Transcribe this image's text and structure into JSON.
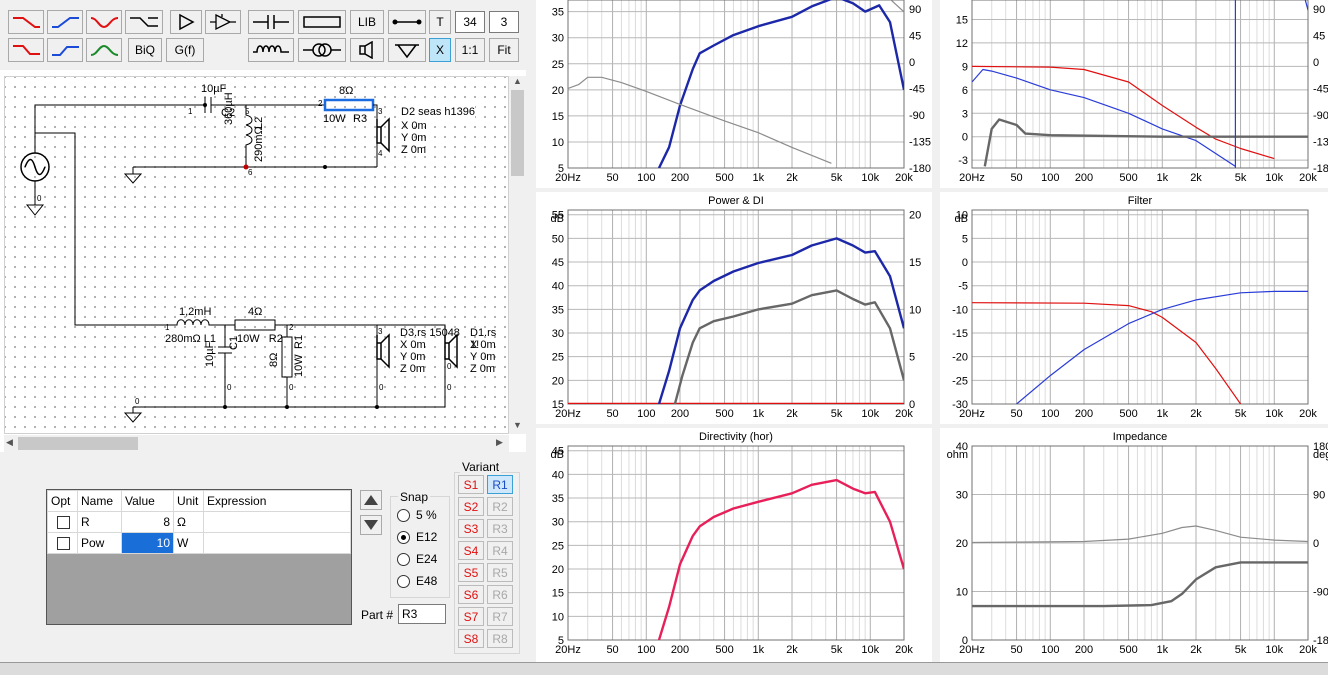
{
  "toolbar": {
    "lib_label": "LIB",
    "t_label": "T",
    "num1": "34",
    "num2": "3",
    "biq_label": "BiQ",
    "gf_label": "G(f)",
    "x_label": "X",
    "ratio_label": "1:1",
    "fit_label": "Fit"
  },
  "schematic": {
    "c2_value": "10µF",
    "c2_name": "C2",
    "l2_value": "360µH",
    "l2_name": "L2",
    "l2_res": "290mΩ",
    "r3_value": "8Ω",
    "r3_pow": "10W",
    "r3_name": "R3",
    "d2_name": "D2 seas h1396",
    "d2_x": "X 0m",
    "d2_y": "Y 0m",
    "d2_z": "Z 0m",
    "l1_value": "1,2mH",
    "l1_label": "280mΩ L1",
    "r2_value": "4Ω",
    "r2_label": "10W   R2",
    "c1_value": "10µF",
    "c1_name": "C1",
    "r1_value": "8Ω",
    "r1_pow": "10W",
    "r1_name": "R1",
    "d3_name": "D3.rs 15048",
    "d3_x": "X 0m",
    "d3_y": "Y 0m",
    "d3_z": "Z 0m",
    "d1_name": "D1.rs 1!",
    "d1_x": "X 0m",
    "d1_y": "Y 0m",
    "d1_z": "Z 0m",
    "node_labels": [
      "1",
      "5",
      "3",
      "2",
      "4",
      "6",
      "0",
      "1",
      "2",
      "3",
      "0",
      "0",
      "0",
      "0",
      "0",
      "0"
    ]
  },
  "properties": {
    "headers": [
      "Opt",
      "Name",
      "Value",
      "Unit",
      "Expression"
    ],
    "rows": [
      {
        "name": "R",
        "value": "8",
        "unit": "Ω",
        "expr": ""
      },
      {
        "name": "Pow",
        "value": "10",
        "unit": "W",
        "expr": ""
      }
    ]
  },
  "snap": {
    "title": "Snap",
    "options": [
      "5 %",
      "E12",
      "E24",
      "E48"
    ],
    "selected": "E12"
  },
  "part": {
    "label": "Part #",
    "value": "R3"
  },
  "variant": {
    "title": "Variant",
    "s_items": [
      "S1",
      "S2",
      "S3",
      "S4",
      "S5",
      "S6",
      "S7",
      "S8"
    ],
    "r_items": [
      "R1",
      "R2",
      "R3",
      "R4",
      "R5",
      "R6",
      "R7",
      "R8"
    ],
    "selected_r": "R1"
  },
  "colors": {
    "blue": "#1c28a8",
    "gray": "#676767",
    "red": "#e01010",
    "pink": "#e8205a",
    "lightgray": "#8c8c8c",
    "thinblue": "#2a3cd8"
  },
  "chart_data": [
    {
      "type": "line",
      "title": "",
      "x_ticks": [
        "20Hz",
        "50",
        "100",
        "200",
        "500",
        "1k",
        "2k",
        "5k",
        "10k",
        "20k"
      ],
      "y_ticks": [
        "5",
        "10",
        "15",
        "20",
        "25",
        "30",
        "35"
      ],
      "y2_ticks": [
        "-180",
        "-135",
        "-90",
        "-45",
        "0",
        "45",
        "90"
      ],
      "ylim": [
        5,
        38
      ],
      "y2lim": [
        -180,
        112
      ],
      "series": [
        {
          "color": "#1c28a8",
          "axis": "left",
          "points": [
            [
              130,
              5
            ],
            [
              160,
              9
            ],
            [
              200,
              17
            ],
            [
              260,
              24
            ],
            [
              300,
              27
            ],
            [
              400,
              28.5
            ],
            [
              600,
              30.5
            ],
            [
              1000,
              32.2
            ],
            [
              2000,
              34
            ],
            [
              3000,
              36
            ],
            [
              5000,
              37.8
            ],
            [
              7000,
              36.6
            ],
            [
              9000,
              35
            ],
            [
              12000,
              36.2
            ],
            [
              15000,
              33
            ],
            [
              20000,
              20
            ]
          ]
        },
        {
          "color": "#8c8c8c",
          "axis": "right",
          "points": [
            [
              20,
              -45
            ],
            [
              25,
              -38
            ],
            [
              30,
              -26
            ],
            [
              40,
              -26
            ],
            [
              60,
              -35
            ],
            [
              100,
              -50
            ],
            [
              200,
              -72
            ],
            [
              500,
              -100
            ],
            [
              1000,
              -120
            ],
            [
              2000,
              -145
            ],
            [
              4500,
              -172
            ]
          ]
        },
        {
          "color": "#8c8c8c",
          "axis": "right",
          "points": [
            [
              14000,
              112
            ],
            [
              20000,
              85
            ]
          ]
        }
      ]
    },
    {
      "type": "line",
      "title": "",
      "x_ticks": [
        "20Hz",
        "50",
        "100",
        "200",
        "500",
        "1k",
        "2k",
        "5k",
        "10k",
        "20k"
      ],
      "y_ticks": [
        "-3",
        "0",
        "3",
        "6",
        "9",
        "12",
        "15"
      ],
      "y2_ticks": [
        "-180",
        "-135",
        "-90",
        "-45",
        "0",
        "45",
        "90"
      ],
      "ylim": [
        -4,
        18
      ],
      "y2lim": [
        -180,
        112
      ],
      "series": [
        {
          "color": "#e01010",
          "axis": "left",
          "points": [
            [
              20,
              9
            ],
            [
              100,
              8.9
            ],
            [
              200,
              8.6
            ],
            [
              500,
              7
            ],
            [
              1000,
              4
            ],
            [
              2000,
              1.2
            ],
            [
              3000,
              -0.3
            ],
            [
              5000,
              -1.5
            ],
            [
              10000,
              -2.8
            ]
          ]
        },
        {
          "color": "#2a3cd8",
          "axis": "left",
          "points": [
            [
              20,
              7
            ],
            [
              25,
              8.6
            ],
            [
              30,
              8.4
            ],
            [
              50,
              7.5
            ],
            [
              100,
              6
            ],
            [
              200,
              5
            ],
            [
              500,
              3
            ],
            [
              1000,
              1
            ],
            [
              2000,
              -0.5
            ],
            [
              4500,
              -3.8
            ]
          ]
        },
        {
          "color": "#676767",
          "axis": "left",
          "points": [
            [
              26,
              -3.8
            ],
            [
              30,
              1
            ],
            [
              35,
              2.2
            ],
            [
              50,
              1.5
            ],
            [
              60,
              0.4
            ],
            [
              100,
              0.2
            ],
            [
              1000,
              0
            ],
            [
              5000,
              0
            ],
            [
              20000,
              0
            ]
          ]
        },
        {
          "color": "#2a3cd8",
          "axis": "right",
          "points": [
            [
              4500,
              -180
            ],
            [
              4500,
              112
            ]
          ]
        },
        {
          "color": "#2a3cd8",
          "axis": "left",
          "points": [
            [
              18500,
              18
            ],
            [
              20000,
              16.2
            ]
          ]
        }
      ]
    },
    {
      "type": "line",
      "title": "Power & DI",
      "x_ticks": [
        "20Hz",
        "50",
        "100",
        "200",
        "500",
        "1k",
        "2k",
        "5k",
        "10k",
        "20k"
      ],
      "y_ticks": [
        "15",
        "20",
        "25",
        "30",
        "35",
        "40",
        "45",
        "50",
        "55"
      ],
      "y_unit": "dB",
      "y2_ticks": [
        "0",
        "5",
        "10",
        "15",
        "20"
      ],
      "ylim": [
        15,
        56
      ],
      "y2lim": [
        0,
        20.5
      ],
      "series": [
        {
          "color": "#e01010",
          "axis": "left",
          "points": [
            [
              20,
              15
            ],
            [
              20000,
              15
            ]
          ]
        },
        {
          "color": "#1c28a8",
          "axis": "left",
          "points": [
            [
              130,
              15
            ],
            [
              160,
              22
            ],
            [
              200,
              31
            ],
            [
              260,
              37
            ],
            [
              300,
              39
            ],
            [
              400,
              41
            ],
            [
              600,
              43
            ],
            [
              1000,
              44.8
            ],
            [
              2000,
              46.5
            ],
            [
              3000,
              48.5
            ],
            [
              5000,
              50
            ],
            [
              7000,
              48.5
            ],
            [
              9000,
              47
            ],
            [
              11000,
              47.3
            ],
            [
              15000,
              42
            ],
            [
              20000,
              31
            ]
          ]
        },
        {
          "color": "#676767",
          "axis": "left",
          "points": [
            [
              180,
              15
            ],
            [
              210,
              21
            ],
            [
              260,
              28
            ],
            [
              300,
              31
            ],
            [
              400,
              32.5
            ],
            [
              600,
              33.5
            ],
            [
              1000,
              35
            ],
            [
              2000,
              36.2
            ],
            [
              3000,
              38
            ],
            [
              5000,
              39
            ],
            [
              7000,
              37.2
            ],
            [
              9000,
              36
            ],
            [
              11000,
              36.5
            ],
            [
              15000,
              31
            ],
            [
              20000,
              20
            ]
          ]
        }
      ]
    },
    {
      "type": "line",
      "title": "Filter",
      "x_ticks": [
        "20Hz",
        "50",
        "100",
        "200",
        "500",
        "1k",
        "2k",
        "5k",
        "10k",
        "20k"
      ],
      "y_ticks": [
        "-30",
        "-25",
        "-20",
        "-15",
        "-10",
        "-5",
        "0",
        "5",
        "10"
      ],
      "y_unit": "dB",
      "ylim": [
        -30,
        11
      ],
      "series": [
        {
          "color": "#e01010",
          "axis": "left",
          "points": [
            [
              20,
              -8.6
            ],
            [
              200,
              -8.7
            ],
            [
              500,
              -9.2
            ],
            [
              800,
              -10.5
            ],
            [
              1000,
              -11.7
            ],
            [
              2000,
              -17
            ],
            [
              3000,
              -22.5
            ],
            [
              5000,
              -30
            ]
          ]
        },
        {
          "color": "#2a3cd8",
          "axis": "left",
          "points": [
            [
              50,
              -30
            ],
            [
              100,
              -24
            ],
            [
              200,
              -18.5
            ],
            [
              500,
              -13
            ],
            [
              1000,
              -10
            ],
            [
              2000,
              -8
            ],
            [
              5000,
              -6.5
            ],
            [
              10000,
              -6.2
            ],
            [
              20000,
              -6.2
            ]
          ]
        }
      ]
    },
    {
      "type": "line",
      "title": "Directivity (hor)",
      "x_ticks": [
        "20Hz",
        "50",
        "100",
        "200",
        "500",
        "1k",
        "2k",
        "5k",
        "10k",
        "20k"
      ],
      "y_ticks": [
        "5",
        "10",
        "15",
        "20",
        "25",
        "30",
        "35",
        "40",
        "45"
      ],
      "y_unit": "dB",
      "ylim": [
        5,
        46
      ],
      "series": [
        {
          "color": "#e8205a",
          "axis": "left",
          "points": [
            [
              130,
              5
            ],
            [
              160,
              12
            ],
            [
              200,
              21
            ],
            [
              260,
              27
            ],
            [
              300,
              29
            ],
            [
              400,
              31
            ],
            [
              600,
              32.8
            ],
            [
              1000,
              34.2
            ],
            [
              2000,
              36
            ],
            [
              3000,
              37.8
            ],
            [
              5000,
              38.8
            ],
            [
              7000,
              37
            ],
            [
              9000,
              36
            ],
            [
              11000,
              36.3
            ],
            [
              15000,
              30
            ],
            [
              20000,
              20
            ]
          ]
        }
      ]
    },
    {
      "type": "line",
      "title": "Impedance",
      "x_ticks": [
        "20Hz",
        "50",
        "100",
        "200",
        "500",
        "1k",
        "2k",
        "5k",
        "10k",
        "20k"
      ],
      "y_ticks": [
        "0",
        "10",
        "20",
        "30",
        "40"
      ],
      "y_unit": "ohm",
      "y2_ticks": [
        "-180",
        "-90",
        "0",
        "90",
        "180"
      ],
      "y2_unit": "deg",
      "ylim": [
        0,
        40
      ],
      "y2lim": [
        -180,
        180
      ],
      "series": [
        {
          "color": "#8c8c8c",
          "axis": "left",
          "points": [
            [
              20,
              20.1
            ],
            [
              200,
              20.3
            ],
            [
              500,
              20.8
            ],
            [
              1000,
              22
            ],
            [
              1500,
              23.2
            ],
            [
              2000,
              23.5
            ],
            [
              3000,
              22.6
            ],
            [
              5000,
              21.2
            ],
            [
              10000,
              20.6
            ],
            [
              20000,
              20.3
            ]
          ]
        },
        {
          "color": "#676767",
          "axis": "left",
          "points": [
            [
              20,
              7
            ],
            [
              300,
              7
            ],
            [
              800,
              7.2
            ],
            [
              1200,
              8
            ],
            [
              1500,
              9.5
            ],
            [
              2000,
              12.5
            ],
            [
              3000,
              15
            ],
            [
              5000,
              16
            ],
            [
              20000,
              16
            ]
          ]
        }
      ]
    }
  ]
}
